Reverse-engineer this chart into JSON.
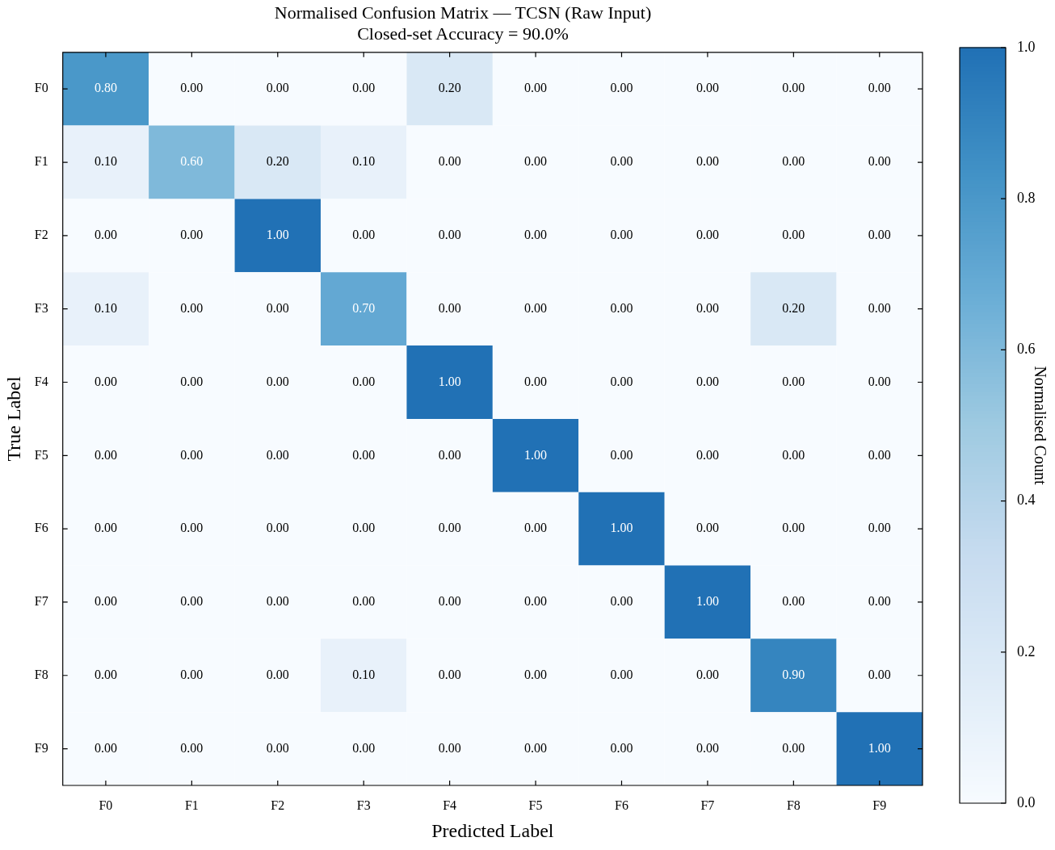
{
  "chart_data": {
    "type": "heatmap",
    "title": "Normalised Confusion Matrix — TCSN (Raw Input)",
    "subtitle": "Closed-set Accuracy = 90.0%",
    "xlabel": "Predicted Label",
    "ylabel": "True Label",
    "clabel": "Normalised Count",
    "categories": [
      "F0",
      "F1",
      "F2",
      "F3",
      "F4",
      "F5",
      "F6",
      "F7",
      "F8",
      "F9"
    ],
    "y_categories": [
      "F0",
      "F1",
      "F2",
      "F3",
      "F4",
      "F5",
      "F6",
      "F7",
      "F8",
      "F9"
    ],
    "cells": [
      [
        0.8,
        0,
        0,
        0,
        0.2,
        0,
        0,
        0,
        0,
        0
      ],
      [
        0.1,
        0.6,
        0.2,
        0.1,
        0,
        0,
        0,
        0,
        0,
        0
      ],
      [
        0,
        0,
        1,
        0,
        0,
        0,
        0,
        0,
        0,
        0
      ],
      [
        0.1,
        0,
        0,
        0.7,
        0,
        0,
        0,
        0,
        0.2,
        0
      ],
      [
        0,
        0,
        0,
        0,
        1,
        0,
        0,
        0,
        0,
        0
      ],
      [
        0,
        0,
        0,
        0,
        0,
        1,
        0,
        0,
        0,
        0
      ],
      [
        0,
        0,
        0,
        0,
        0,
        0,
        1,
        0,
        0,
        0
      ],
      [
        0,
        0,
        0,
        0,
        0,
        0,
        0,
        1,
        0,
        0
      ],
      [
        0,
        0,
        0,
        0.1,
        0,
        0,
        0,
        0,
        0.9,
        0
      ],
      [
        0,
        0,
        0,
        0,
        0,
        0,
        0,
        0,
        0,
        1
      ]
    ],
    "cell_labels": [
      [
        "0.80",
        "0.00",
        "0.00",
        "0.00",
        "0.20",
        "0.00",
        "0.00",
        "0.00",
        "0.00",
        "0.00"
      ],
      [
        "0.10",
        "0.60",
        "0.20",
        "0.10",
        "0.00",
        "0.00",
        "0.00",
        "0.00",
        "0.00",
        "0.00"
      ],
      [
        "0.00",
        "0.00",
        "1.00",
        "0.00",
        "0.00",
        "0.00",
        "0.00",
        "0.00",
        "0.00",
        "0.00"
      ],
      [
        "0.10",
        "0.00",
        "0.00",
        "0.70",
        "0.00",
        "0.00",
        "0.00",
        "0.00",
        "0.20",
        "0.00"
      ],
      [
        "0.00",
        "0.00",
        "0.00",
        "0.00",
        "1.00",
        "0.00",
        "0.00",
        "0.00",
        "0.00",
        "0.00"
      ],
      [
        "0.00",
        "0.00",
        "0.00",
        "0.00",
        "0.00",
        "1.00",
        "0.00",
        "0.00",
        "0.00",
        "0.00"
      ],
      [
        "0.00",
        "0.00",
        "0.00",
        "0.00",
        "0.00",
        "0.00",
        "1.00",
        "0.00",
        "0.00",
        "0.00"
      ],
      [
        "0.00",
        "0.00",
        "0.00",
        "0.00",
        "0.00",
        "0.00",
        "0.00",
        "1.00",
        "0.00",
        "0.00"
      ],
      [
        "0.00",
        "0.00",
        "0.00",
        "0.10",
        "0.00",
        "0.00",
        "0.00",
        "0.00",
        "0.90",
        "0.00"
      ],
      [
        "0.00",
        "0.00",
        "0.00",
        "0.00",
        "0.00",
        "0.00",
        "0.00",
        "0.00",
        "0.00",
        "1.00"
      ]
    ],
    "clim": [
      0,
      1
    ],
    "cticks": [
      {
        "value": 0,
        "label": "0.0"
      },
      {
        "value": 0.2,
        "label": "0.2"
      },
      {
        "value": 0.4,
        "label": "0.4"
      },
      {
        "value": 0.6,
        "label": "0.6"
      },
      {
        "value": 0.8,
        "label": "0.8"
      },
      {
        "value": 1,
        "label": "1.0"
      }
    ]
  }
}
